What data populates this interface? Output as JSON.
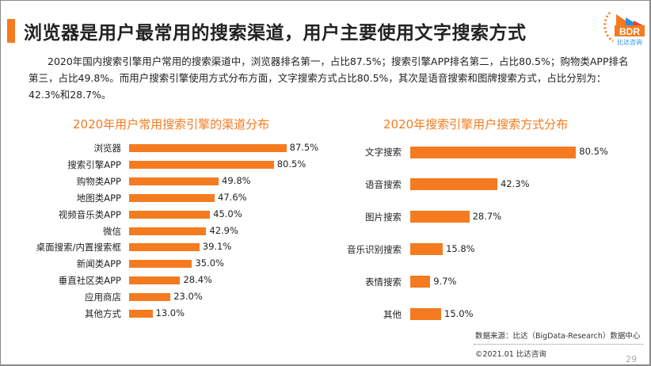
{
  "title": "浏览器是用户最常用的搜索渠道，用户主要使用文字搜索方式",
  "logo": {
    "text": "BDR",
    "subtext": "比达咨询",
    "colors": [
      "#f47b20",
      "#2a8fe0",
      "#e8433a"
    ]
  },
  "paragraph": "2020年国内搜索引擎用户常用的搜索渠道中，浏览器排名第一，占比87.5%；搜索引擎APP排名第二，占比80.5%；购物类APP排名第三，占比49.8%。而用户搜索引擎使用方式分布方面，文字搜索方式占比80.5%，其次是语音搜索和图牌搜索方式，占比分别为：42.3%和28.7%。",
  "accent_color": "#f47b20",
  "chart_data": [
    {
      "type": "bar",
      "orientation": "horizontal",
      "title": "2020年用户常用搜索引擎的渠道分布",
      "categories": [
        "浏览器",
        "搜索引擎APP",
        "购物类APP",
        "地图类APP",
        "视频音乐类APP",
        "微信",
        "桌面搜索/内置搜索框",
        "新闻类APP",
        "垂直社区类APP",
        "应用商店",
        "其他方式"
      ],
      "values": [
        87.5,
        80.5,
        49.8,
        47.6,
        45.0,
        42.9,
        39.1,
        35.0,
        28.4,
        23.0,
        13.0
      ],
      "labels": [
        "87.5%",
        "80.5%",
        "49.8%",
        "47.6%",
        "45.0%",
        "42.9%",
        "39.1%",
        "35.0%",
        "28.4%",
        "23.0%",
        "13.0%"
      ]
    },
    {
      "type": "bar",
      "orientation": "horizontal",
      "title": "2020年搜索引擎用户搜索方式分布",
      "categories": [
        "文字搜索",
        "语音搜索",
        "图片搜索",
        "音乐识别搜索",
        "表情搜索",
        "其他"
      ],
      "values": [
        80.5,
        42.3,
        28.7,
        15.8,
        9.7,
        15.0
      ],
      "labels": [
        "80.5%",
        "42.3%",
        "28.7%",
        "15.8%",
        "9.7%",
        "15.0%"
      ]
    }
  ],
  "footer": {
    "source": "数据来源：比达（BigData-Research）数据中心",
    "copyright": "©2021.01 比达咨询",
    "page": "29"
  }
}
